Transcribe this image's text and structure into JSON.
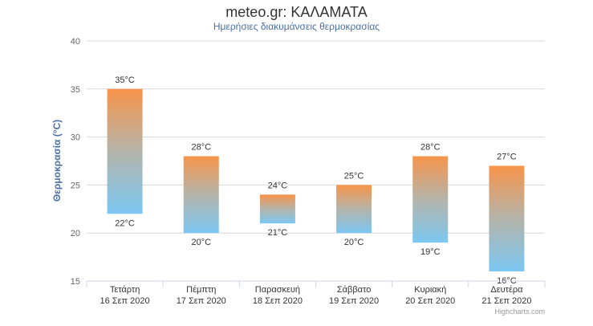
{
  "chart_data": {
    "type": "bar",
    "subtype": "columnrange",
    "title": "meteo.gr: ΚΑΛΑΜΑΤΑ",
    "subtitle": "Ημερήσιες διακυμάνσεις θερμοκρασίας",
    "ylabel": "Θερμοκρασία (°C)",
    "xlabel": "",
    "ylim": [
      15,
      40
    ],
    "yticks": [
      "15",
      "20",
      "25",
      "30",
      "35",
      "40"
    ],
    "grid": true,
    "legend": "none",
    "categories": [
      {
        "day": "Τετάρτη",
        "date": "16 Σεπ 2020"
      },
      {
        "day": "Πέμπτη",
        "date": "17 Σεπ 2020"
      },
      {
        "day": "Παρασκευή",
        "date": "18 Σεπ 2020"
      },
      {
        "day": "Σάββατο",
        "date": "19 Σεπ 2020"
      },
      {
        "day": "Κυριακή",
        "date": "20 Σεπ 2020"
      },
      {
        "day": "Δευτέρα",
        "date": "21 Σεπ 2020"
      }
    ],
    "series": [
      {
        "low": [
          22,
          20,
          21,
          20,
          19,
          16
        ],
        "high": [
          35,
          28,
          24,
          25,
          28,
          27
        ]
      }
    ],
    "low_labels": [
      "22°C",
      "20°C",
      "21°C",
      "20°C",
      "19°C",
      "16°C"
    ],
    "high_labels": [
      "35°C",
      "28°C",
      "24°C",
      "25°C",
      "28°C",
      "27°C"
    ],
    "colors": {
      "top": "#f7944a",
      "middle": "#b4b4aa",
      "bottom": "#7cc7f2",
      "grid": "#d8d8d8",
      "axis": "#ccd6eb"
    }
  },
  "credits": "Highcharts.com"
}
